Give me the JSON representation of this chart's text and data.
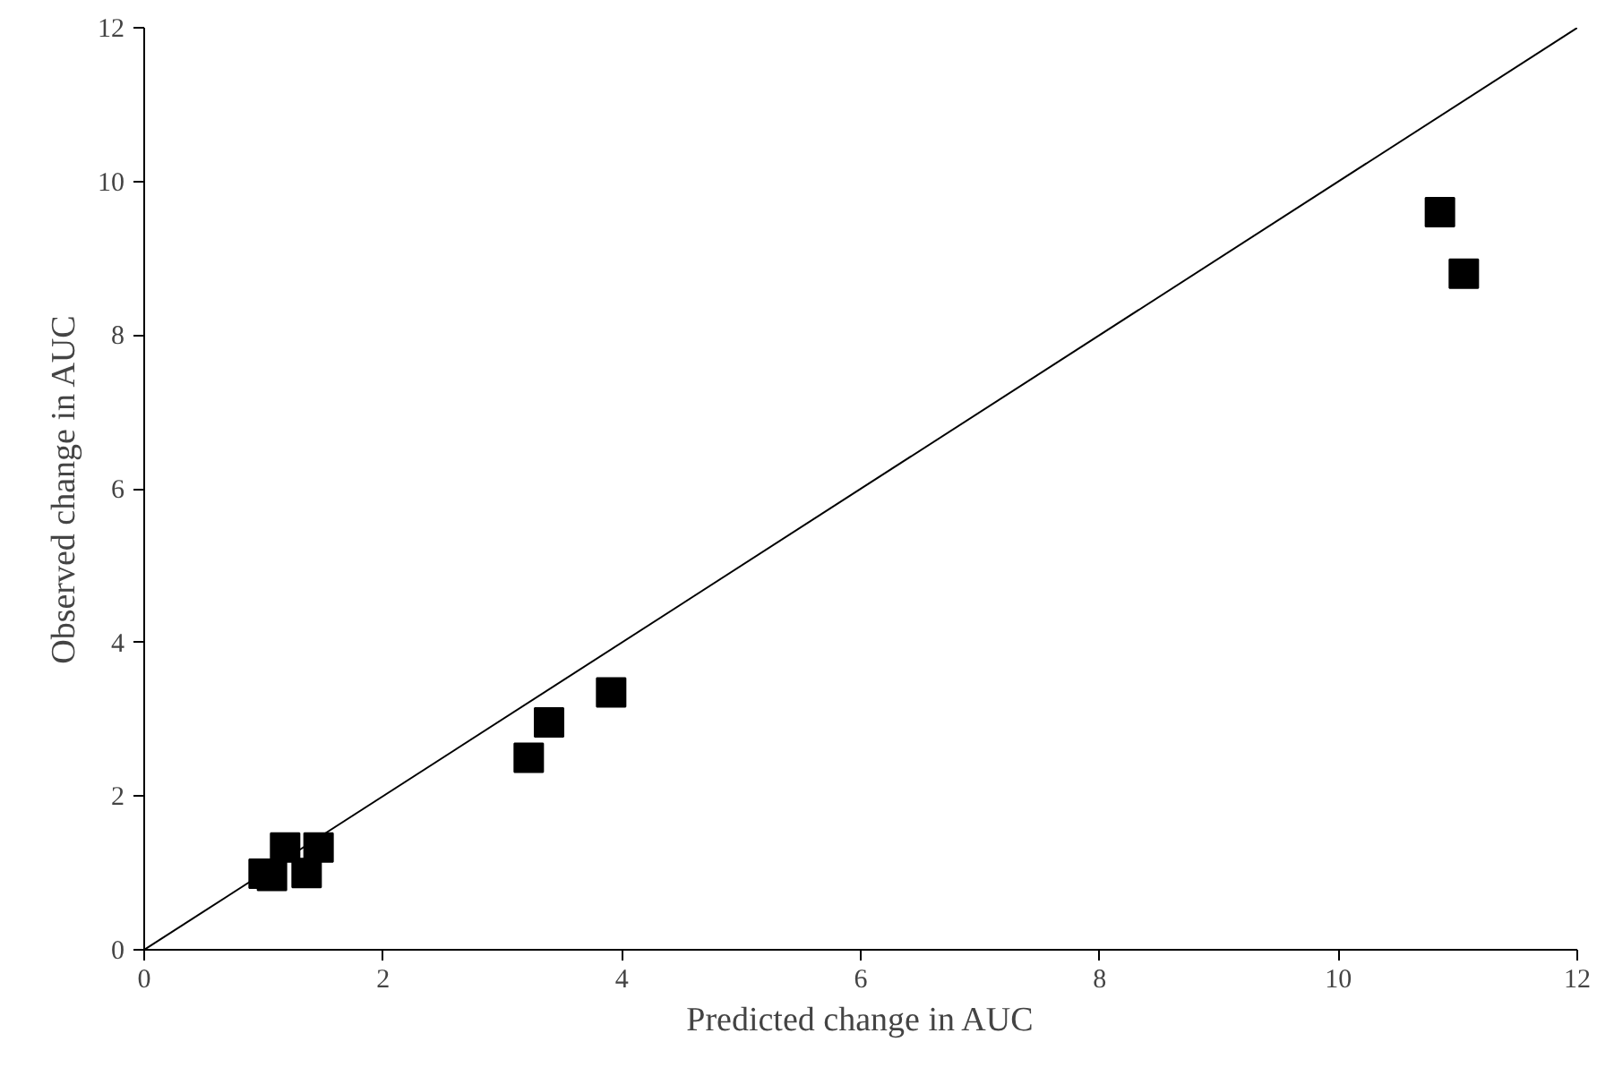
{
  "chart_data": {
    "type": "scatter",
    "xlabel": "Predicted change in AUC",
    "ylabel": "Observed change in AUC",
    "xlim": [
      0,
      12
    ],
    "ylim": [
      0,
      12
    ],
    "xticks": [
      0,
      2,
      4,
      6,
      8,
      10,
      12
    ],
    "yticks": [
      0,
      2,
      4,
      6,
      8,
      10,
      12
    ],
    "grid": false,
    "marker": "square",
    "series": [
      {
        "color": "#000000",
        "x": [
          1.0,
          1.07,
          1.18,
          1.36,
          1.46,
          3.22,
          3.39,
          3.91,
          10.85,
          11.05
        ],
        "values": [
          0.99,
          0.96,
          1.33,
          1.0,
          1.33,
          2.5,
          2.96,
          3.35,
          9.6,
          8.8
        ]
      },
      {
        "type": "line",
        "marker": "none",
        "color": "#000000",
        "x": [
          0,
          12
        ],
        "values": [
          0,
          12
        ]
      }
    ]
  }
}
